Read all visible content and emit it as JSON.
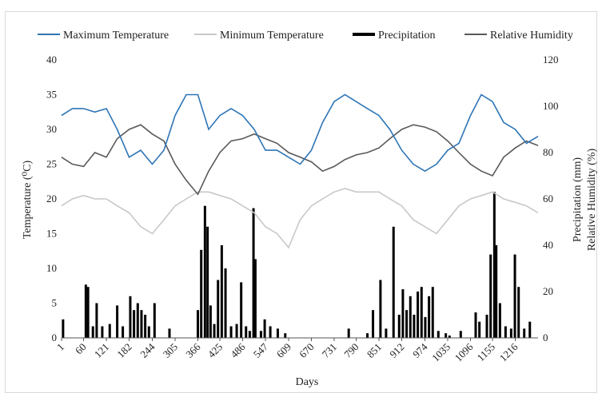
{
  "chart_data": {
    "type": "line",
    "xlabel": "Days",
    "ylabel": "Temperature (⁰C)",
    "y2label": [
      "Precipitation  (mm)",
      "Relative Humidity  (%)"
    ],
    "x_range": [
      1,
      1277
    ],
    "ylim": [
      0,
      40
    ],
    "y2lim": [
      0,
      120
    ],
    "x_ticks": [
      1,
      60,
      121,
      182,
      244,
      305,
      366,
      425,
      486,
      547,
      609,
      670,
      731,
      790,
      851,
      912,
      974,
      1035,
      1096,
      1155,
      1216
    ],
    "y_ticks": [
      0,
      5,
      10,
      15,
      20,
      25,
      30,
      35,
      40
    ],
    "y2_ticks": [
      0,
      20,
      40,
      60,
      80,
      100,
      120
    ],
    "grid": false,
    "legend": "top",
    "series": [
      {
        "name": "Maximum Temperature",
        "axis": "left",
        "color": "#2e75b6",
        "kind": "line",
        "x": [
          1,
          30,
          60,
          90,
          121,
          150,
          182,
          213,
          244,
          275,
          305,
          335,
          366,
          395,
          425,
          455,
          486,
          517,
          547,
          578,
          609,
          640,
          670,
          700,
          731,
          760,
          790,
          820,
          851,
          880,
          912,
          943,
          974,
          1005,
          1035,
          1065,
          1096,
          1125,
          1155,
          1185,
          1216,
          1246,
          1277
        ],
        "y": [
          32,
          33,
          33,
          32.5,
          33,
          30,
          26,
          27,
          25,
          27,
          32,
          35,
          35,
          30,
          32,
          33,
          32,
          30,
          27,
          27,
          26,
          25,
          27,
          31,
          34,
          35,
          34,
          33,
          32,
          30,
          27,
          25,
          24,
          25,
          27,
          28,
          32,
          35,
          34,
          31,
          30,
          28,
          29
        ]
      },
      {
        "name": "Minimum Temperature",
        "axis": "left",
        "color": "#c8c8c8",
        "kind": "line",
        "x": [
          1,
          30,
          60,
          90,
          121,
          150,
          182,
          213,
          244,
          275,
          305,
          335,
          366,
          395,
          425,
          455,
          486,
          517,
          547,
          578,
          609,
          640,
          670,
          700,
          731,
          760,
          790,
          820,
          851,
          880,
          912,
          943,
          974,
          1005,
          1035,
          1065,
          1096,
          1125,
          1155,
          1185,
          1216,
          1246,
          1277
        ],
        "y": [
          19,
          20,
          20.5,
          20,
          20,
          19,
          18,
          16,
          15,
          17,
          19,
          20,
          21,
          21,
          20.5,
          20,
          19,
          18,
          16,
          15,
          13,
          17,
          19,
          20,
          21,
          21.5,
          21,
          21,
          21,
          20,
          19,
          17,
          16,
          15,
          17,
          19,
          20,
          20.5,
          21,
          20,
          19.5,
          19,
          18
        ]
      },
      {
        "name": "Relative Humidity",
        "axis": "right",
        "color": "#595959",
        "kind": "line",
        "x": [
          1,
          30,
          60,
          90,
          121,
          150,
          182,
          213,
          244,
          275,
          305,
          335,
          366,
          395,
          425,
          455,
          486,
          517,
          547,
          578,
          609,
          640,
          670,
          700,
          731,
          760,
          790,
          820,
          851,
          880,
          912,
          943,
          974,
          1005,
          1035,
          1065,
          1096,
          1125,
          1155,
          1185,
          1216,
          1246,
          1277
        ],
        "y": [
          78,
          75,
          74,
          80,
          78,
          86,
          90,
          92,
          88,
          85,
          75,
          68,
          62,
          72,
          80,
          85,
          86,
          88,
          86,
          84,
          80,
          78,
          76,
          72,
          74,
          77,
          79,
          80,
          82,
          86,
          90,
          92,
          91,
          89,
          85,
          80,
          75,
          72,
          70,
          78,
          82,
          85,
          83
        ]
      },
      {
        "name": "Precipitation",
        "axis": "right",
        "color": "#000000",
        "kind": "bar",
        "x": [
          5,
          66,
          72,
          85,
          95,
          110,
          130,
          150,
          165,
          185,
          195,
          205,
          215,
          225,
          235,
          250,
          290,
          366,
          375,
          385,
          392,
          400,
          410,
          420,
          430,
          440,
          455,
          470,
          482,
          495,
          505,
          515,
          520,
          535,
          545,
          560,
          580,
          600,
          770,
          820,
          835,
          855,
          870,
          890,
          905,
          915,
          925,
          935,
          945,
          955,
          965,
          975,
          985,
          995,
          1010,
          1030,
          1040,
          1070,
          1110,
          1120,
          1140,
          1150,
          1160,
          1165,
          1175,
          1190,
          1205,
          1215,
          1225,
          1240,
          1255
        ],
        "y": [
          8,
          23,
          22,
          5,
          15,
          5,
          6,
          14,
          5,
          18,
          12,
          15,
          12,
          10,
          5,
          15,
          4,
          12,
          38,
          57,
          48,
          14,
          6,
          25,
          40,
          30,
          5,
          6,
          24,
          5,
          3,
          56,
          34,
          3,
          8,
          5,
          4,
          2,
          4,
          2,
          12,
          25,
          4,
          48,
          10,
          21,
          12,
          18,
          10,
          20,
          22,
          9,
          18,
          22,
          3,
          2,
          1,
          3,
          11,
          7,
          10,
          36,
          63,
          40,
          15,
          5,
          4,
          36,
          22,
          4,
          7
        ]
      }
    ]
  }
}
